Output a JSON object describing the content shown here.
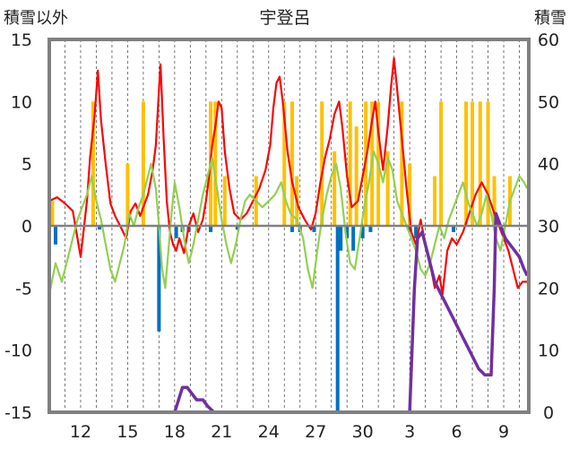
{
  "chart_data": {
    "type": "line",
    "title": "宇登呂",
    "y_left_label": "積雪以外",
    "y_right_label": "積雪",
    "y_left_range": [
      -15,
      15
    ],
    "y_right_range": [
      0,
      60
    ],
    "y_left_ticks": [
      "15",
      "10",
      "5",
      "0",
      "-5",
      "-10",
      "-15"
    ],
    "y_right_ticks": [
      "60",
      "50",
      "40",
      "30",
      "20",
      "10",
      "0"
    ],
    "x_ticks": [
      "12",
      "15",
      "18",
      "21",
      "24",
      "27",
      "30",
      "3",
      "6",
      "9"
    ],
    "grid": "vertical dashed daily lines",
    "series": [
      {
        "color": "#ff0000",
        "points": [
          [
            10.0,
            2.0
          ],
          [
            10.5,
            2.3
          ],
          [
            11.0,
            1.8
          ],
          [
            11.5,
            1.2
          ],
          [
            12.0,
            -2.5
          ],
          [
            12.4,
            2.0
          ],
          [
            12.6,
            5.5
          ],
          [
            12.9,
            9.0
          ],
          [
            13.1,
            12.5
          ],
          [
            13.3,
            8.5
          ],
          [
            13.6,
            5.0
          ],
          [
            13.9,
            1.8
          ],
          [
            14.2,
            0.8
          ],
          [
            14.6,
            -0.2
          ],
          [
            14.9,
            -1.0
          ],
          [
            15.2,
            1.2
          ],
          [
            15.5,
            1.8
          ],
          [
            15.8,
            0.8
          ],
          [
            16.0,
            1.5
          ],
          [
            16.3,
            2.5
          ],
          [
            16.6,
            4.5
          ],
          [
            16.8,
            6.5
          ],
          [
            17.0,
            11.0
          ],
          [
            17.1,
            13.0
          ],
          [
            17.3,
            7.0
          ],
          [
            17.5,
            2.0
          ],
          [
            17.7,
            -0.5
          ],
          [
            17.9,
            -1.5
          ],
          [
            18.1,
            -2.0
          ],
          [
            18.3,
            -1.0
          ],
          [
            18.6,
            -2.2
          ],
          [
            18.9,
            0.0
          ],
          [
            19.2,
            1.0
          ],
          [
            19.5,
            -0.5
          ],
          [
            19.8,
            0.5
          ],
          [
            20.0,
            2.0
          ],
          [
            20.2,
            4.0
          ],
          [
            20.4,
            6.5
          ],
          [
            20.6,
            8.0
          ],
          [
            20.8,
            10.0
          ],
          [
            21.0,
            9.5
          ],
          [
            21.2,
            6.0
          ],
          [
            21.5,
            3.0
          ],
          [
            21.8,
            1.0
          ],
          [
            22.2,
            0.5
          ],
          [
            22.6,
            1.0
          ],
          [
            23.0,
            2.0
          ],
          [
            23.4,
            3.0
          ],
          [
            23.8,
            4.5
          ],
          [
            24.1,
            6.5
          ],
          [
            24.3,
            9.5
          ],
          [
            24.5,
            11.5
          ],
          [
            24.7,
            12.0
          ],
          [
            24.9,
            10.0
          ],
          [
            25.2,
            6.0
          ],
          [
            25.5,
            3.5
          ],
          [
            25.9,
            1.5
          ],
          [
            26.3,
            0.5
          ],
          [
            26.7,
            -0.3
          ],
          [
            27.0,
            1.0
          ],
          [
            27.3,
            3.5
          ],
          [
            27.6,
            5.5
          ],
          [
            27.9,
            7.0
          ],
          [
            28.2,
            9.0
          ],
          [
            28.5,
            10.0
          ],
          [
            28.7,
            8.0
          ],
          [
            29.0,
            4.0
          ],
          [
            29.3,
            1.5
          ],
          [
            29.7,
            2.0
          ],
          [
            30.0,
            4.0
          ],
          [
            30.3,
            6.0
          ],
          [
            30.6,
            8.5
          ],
          [
            30.8,
            10.0
          ],
          [
            31.0,
            7.5
          ],
          [
            31.3,
            4.5
          ],
          [
            31.6,
            8.0
          ],
          [
            31.8,
            11.0
          ],
          [
            32.0,
            13.5
          ],
          [
            32.2,
            11.0
          ],
          [
            32.5,
            7.0
          ],
          [
            32.8,
            3.0
          ],
          [
            33.1,
            -0.5
          ],
          [
            33.4,
            -1.5
          ],
          [
            33.7,
            0.5
          ],
          [
            34.0,
            -1.5
          ],
          [
            34.3,
            -3.0
          ],
          [
            34.6,
            -5.0
          ],
          [
            34.9,
            -4.0
          ],
          [
            35.1,
            -5.5
          ],
          [
            35.4,
            -2.0
          ],
          [
            35.7,
            -1.0
          ],
          [
            36.0,
            -1.5
          ],
          [
            36.4,
            -0.5
          ],
          [
            36.8,
            1.0
          ],
          [
            37.2,
            2.5
          ],
          [
            37.6,
            3.5
          ],
          [
            38.0,
            2.5
          ],
          [
            38.4,
            1.0
          ],
          [
            38.7,
            0.0
          ],
          [
            39.0,
            -1.0
          ],
          [
            39.3,
            -2.0
          ],
          [
            39.6,
            -3.5
          ],
          [
            39.9,
            -5.0
          ],
          [
            40.2,
            -4.5
          ],
          [
            40.5,
            -4.5
          ]
        ]
      },
      {
        "color": "#92d050",
        "points": [
          [
            10.0,
            -5.5
          ],
          [
            10.4,
            -3.0
          ],
          [
            10.8,
            -4.5
          ],
          [
            11.2,
            -2.5
          ],
          [
            11.5,
            -1.0
          ],
          [
            11.8,
            0.5
          ],
          [
            12.1,
            1.5
          ],
          [
            12.4,
            2.5
          ],
          [
            12.7,
            4.0
          ],
          [
            13.0,
            2.0
          ],
          [
            13.3,
            0.5
          ],
          [
            13.6,
            -1.5
          ],
          [
            13.9,
            -3.5
          ],
          [
            14.2,
            -4.5
          ],
          [
            14.5,
            -3.0
          ],
          [
            14.8,
            -1.5
          ],
          [
            15.1,
            1.0
          ],
          [
            15.4,
            0.0
          ],
          [
            15.7,
            1.5
          ],
          [
            16.0,
            2.5
          ],
          [
            16.3,
            4.0
          ],
          [
            16.5,
            5.0
          ],
          [
            16.8,
            3.0
          ],
          [
            17.0,
            0.0
          ],
          [
            17.2,
            -3.5
          ],
          [
            17.4,
            -5.0
          ],
          [
            17.6,
            -2.0
          ],
          [
            17.8,
            1.0
          ],
          [
            18.0,
            3.5
          ],
          [
            18.3,
            1.5
          ],
          [
            18.6,
            -1.0
          ],
          [
            18.9,
            -3.0
          ],
          [
            19.2,
            -1.5
          ],
          [
            19.5,
            0.5
          ],
          [
            19.8,
            2.5
          ],
          [
            20.1,
            4.0
          ],
          [
            20.4,
            5.5
          ],
          [
            20.7,
            3.0
          ],
          [
            21.0,
            0.5
          ],
          [
            21.3,
            -1.5
          ],
          [
            21.6,
            -3.0
          ],
          [
            21.9,
            -1.5
          ],
          [
            22.2,
            0.5
          ],
          [
            22.5,
            2.0
          ],
          [
            22.8,
            2.5
          ],
          [
            23.2,
            2.0
          ],
          [
            23.6,
            1.5
          ],
          [
            24.0,
            2.0
          ],
          [
            24.4,
            2.5
          ],
          [
            24.8,
            3.5
          ],
          [
            25.1,
            2.0
          ],
          [
            25.4,
            1.0
          ],
          [
            25.8,
            0.5
          ],
          [
            26.2,
            -1.0
          ],
          [
            26.5,
            -3.5
          ],
          [
            26.8,
            -5.0
          ],
          [
            27.1,
            -2.0
          ],
          [
            27.4,
            0.5
          ],
          [
            27.7,
            2.5
          ],
          [
            28.0,
            4.0
          ],
          [
            28.3,
            5.0
          ],
          [
            28.6,
            3.0
          ],
          [
            28.9,
            -0.5
          ],
          [
            29.2,
            -3.0
          ],
          [
            29.5,
            -3.5
          ],
          [
            29.8,
            -1.0
          ],
          [
            30.1,
            1.5
          ],
          [
            30.4,
            3.5
          ],
          [
            30.7,
            6.0
          ],
          [
            31.0,
            5.0
          ],
          [
            31.3,
            3.5
          ],
          [
            31.6,
            5.5
          ],
          [
            31.9,
            4.5
          ],
          [
            32.2,
            2.0
          ],
          [
            32.5,
            1.0
          ],
          [
            32.8,
            0.0
          ],
          [
            33.1,
            -1.0
          ],
          [
            33.4,
            -2.0
          ],
          [
            33.7,
            -3.5
          ],
          [
            34.0,
            -4.0
          ],
          [
            34.3,
            -3.0
          ],
          [
            34.6,
            -1.5
          ],
          [
            34.9,
            0.0
          ],
          [
            35.2,
            -1.0
          ],
          [
            35.5,
            0.5
          ],
          [
            35.8,
            1.5
          ],
          [
            36.1,
            2.5
          ],
          [
            36.4,
            3.5
          ],
          [
            36.7,
            2.0
          ],
          [
            37.0,
            1.0
          ],
          [
            37.3,
            0.0
          ],
          [
            37.6,
            1.0
          ],
          [
            37.9,
            2.5
          ],
          [
            38.2,
            1.0
          ],
          [
            38.5,
            -1.0
          ],
          [
            38.8,
            -2.0
          ],
          [
            39.1,
            0.0
          ],
          [
            39.4,
            2.0
          ],
          [
            39.7,
            3.0
          ],
          [
            40.0,
            4.0
          ],
          [
            40.3,
            3.5
          ],
          [
            40.5,
            3.0
          ]
        ]
      },
      {
        "color": "#7030a0",
        "axis": "right",
        "points": [
          [
            10.0,
            0
          ],
          [
            18.0,
            0
          ],
          [
            18.5,
            4
          ],
          [
            18.8,
            4
          ],
          [
            19.1,
            3
          ],
          [
            19.4,
            2
          ],
          [
            19.8,
            2
          ],
          [
            20.1,
            1
          ],
          [
            20.5,
            0
          ],
          [
            33.0,
            0
          ],
          [
            33.3,
            20
          ],
          [
            33.5,
            28
          ],
          [
            33.8,
            29
          ],
          [
            34.2,
            25
          ],
          [
            34.6,
            21
          ],
          [
            35.0,
            19
          ],
          [
            35.4,
            17
          ],
          [
            35.8,
            15
          ],
          [
            36.2,
            13
          ],
          [
            36.6,
            11
          ],
          [
            37.0,
            9
          ],
          [
            37.4,
            7
          ],
          [
            37.8,
            6
          ],
          [
            38.2,
            6
          ],
          [
            38.4,
            20
          ],
          [
            38.5,
            32
          ],
          [
            38.8,
            30
          ],
          [
            39.1,
            28
          ],
          [
            39.4,
            27
          ],
          [
            39.7,
            26
          ],
          [
            40.0,
            25
          ],
          [
            40.3,
            23
          ],
          [
            40.5,
            22
          ]
        ]
      },
      {
        "color": "#0070c0",
        "type": "bar",
        "points": [
          [
            10.4,
            -1.5
          ],
          [
            13.2,
            -0.3
          ],
          [
            17.0,
            -8.5
          ],
          [
            18.1,
            -1.0
          ],
          [
            18.5,
            -0.5
          ],
          [
            18.9,
            -0.5
          ],
          [
            20.3,
            -0.5
          ],
          [
            22.0,
            -0.3
          ],
          [
            25.5,
            -0.5
          ],
          [
            26.0,
            -0.5
          ],
          [
            26.9,
            -0.5
          ],
          [
            28.4,
            -15.0
          ],
          [
            28.6,
            -2.0
          ],
          [
            29.0,
            -1.0
          ],
          [
            29.4,
            -2.0
          ],
          [
            30.0,
            -1.0
          ],
          [
            30.5,
            -0.5
          ],
          [
            33.0,
            -0.5
          ],
          [
            33.4,
            -1.0
          ],
          [
            35.8,
            -0.5
          ]
        ]
      },
      {
        "color": "#ffc000",
        "type": "bar",
        "points": [
          [
            10.2,
            2.0
          ],
          [
            12.8,
            10.0
          ],
          [
            15.0,
            5.0
          ],
          [
            16.0,
            10.0
          ],
          [
            20.3,
            10.0
          ],
          [
            20.6,
            10.0
          ],
          [
            21.2,
            4.0
          ],
          [
            23.2,
            4.0
          ],
          [
            25.0,
            10.0
          ],
          [
            25.5,
            10.0
          ],
          [
            25.8,
            4.0
          ],
          [
            27.4,
            10.0
          ],
          [
            28.2,
            6.0
          ],
          [
            29.2,
            10.0
          ],
          [
            29.6,
            8.0
          ],
          [
            30.2,
            10.0
          ],
          [
            30.6,
            10.0
          ],
          [
            31.0,
            10.0
          ],
          [
            31.6,
            6.0
          ],
          [
            32.5,
            10.0
          ],
          [
            33.0,
            5.0
          ],
          [
            34.6,
            4.0
          ],
          [
            35.0,
            10.0
          ],
          [
            36.6,
            10.0
          ],
          [
            37.0,
            10.0
          ],
          [
            37.5,
            10.0
          ],
          [
            38.0,
            10.0
          ],
          [
            38.4,
            4.0
          ],
          [
            39.4,
            4.0
          ]
        ]
      }
    ]
  }
}
